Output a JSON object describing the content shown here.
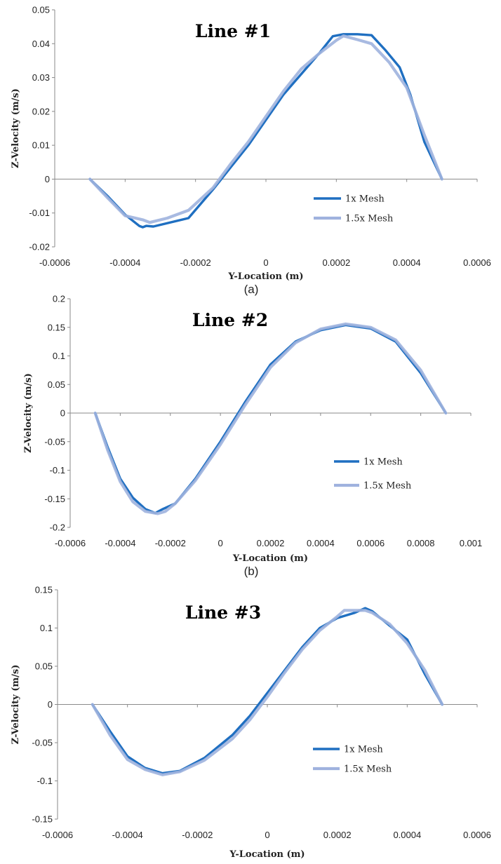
{
  "chart_data": [
    {
      "type": "line",
      "title": "Line #1",
      "xlabel": "Y-Location (m)",
      "ylabel": "Z-Velocity (m/s)",
      "caption": "(a)",
      "xlim": [
        -0.0006,
        0.0006
      ],
      "ylim": [
        -0.02,
        0.05
      ],
      "xticks": [
        -0.0006,
        -0.0004,
        -0.0002,
        0,
        0.0002,
        0.0004,
        0.0006
      ],
      "xtick_labels": [
        "-0.0006",
        "-0.0004",
        "-0.0002",
        "0",
        "0.0002",
        "0.0004",
        "0.0006"
      ],
      "yticks": [
        -0.02,
        -0.01,
        0,
        0.01,
        0.02,
        0.03,
        0.04,
        0.05
      ],
      "ytick_labels": [
        "-0.02",
        "-0.01",
        "0",
        "0.01",
        "0.02",
        "0.03",
        "0.04",
        "0.05"
      ],
      "grid": false,
      "legend_position": "bottom-right",
      "series": [
        {
          "name": "1x Mesh",
          "color": "#1f6fc1",
          "x": [
            -0.0005,
            -0.00045,
            -0.0004,
            -0.00036,
            -0.00035,
            -0.00034,
            -0.00032,
            -0.00022,
            -0.00015,
            -0.0001,
            -5e-05,
            0,
            5e-05,
            0.0001,
            0.00015,
            0.00019,
            0.00022,
            0.00026,
            0.0003,
            0.00034,
            0.00038,
            0.00041,
            0.00045,
            0.0005
          ],
          "y": [
            0,
            -0.005,
            -0.0105,
            -0.0138,
            -0.0142,
            -0.0138,
            -0.014,
            -0.0115,
            -0.003,
            0.0035,
            0.01,
            0.0175,
            0.025,
            0.031,
            0.037,
            0.0422,
            0.0428,
            0.0428,
            0.0425,
            0.038,
            0.033,
            0.025,
            0.011,
            0
          ]
        },
        {
          "name": "1.5x Mesh",
          "color": "#9fb2de",
          "x": [
            -0.0005,
            -0.00045,
            -0.0004,
            -0.00035,
            -0.00033,
            -0.00028,
            -0.00022,
            -0.00015,
            -0.0001,
            -5e-05,
            0,
            5e-05,
            0.0001,
            0.00015,
            0.0002,
            0.00022,
            0.00026,
            0.0003,
            0.00035,
            0.0004,
            0.00045,
            0.0005
          ],
          "y": [
            0,
            -0.0055,
            -0.0108,
            -0.012,
            -0.0128,
            -0.0115,
            -0.0092,
            -0.0025,
            0.0045,
            0.011,
            0.0185,
            0.026,
            0.0325,
            0.037,
            0.041,
            0.0423,
            0.0412,
            0.04,
            0.0345,
            0.027,
            0.013,
            0
          ]
        }
      ]
    },
    {
      "type": "line",
      "title": "Line #2",
      "xlabel": "Y-Location (m)",
      "ylabel": "Z-Velocity (m/s)",
      "caption": "(b)",
      "xlim": [
        -0.0006,
        0.001
      ],
      "ylim": [
        -0.2,
        0.2
      ],
      "xticks": [
        -0.0006,
        -0.0004,
        -0.0002,
        0,
        0.0002,
        0.0004,
        0.0006,
        0.0008,
        0.001
      ],
      "xtick_labels": [
        "-0.0006",
        "-0.0004",
        "-0.0002",
        "0",
        "0.0002",
        "0.0004",
        "0.0006",
        "0.0008",
        "0.001"
      ],
      "yticks": [
        -0.2,
        -0.15,
        -0.1,
        -0.05,
        0,
        0.05,
        0.1,
        0.15,
        0.2
      ],
      "ytick_labels": [
        "-0.2",
        "-0.15",
        "-0.1",
        "-0.05",
        "0",
        "0.05",
        "0.1",
        "0.15",
        "0.2"
      ],
      "grid": false,
      "legend_position": "bottom-right",
      "series": [
        {
          "name": "1x Mesh",
          "color": "#1f6fc1",
          "x": [
            -0.0005,
            -0.00045,
            -0.0004,
            -0.00035,
            -0.0003,
            -0.00026,
            -0.00023,
            -0.00018,
            -0.0001,
            0,
            0.0001,
            0.0002,
            0.0003,
            0.0004,
            0.0005,
            0.0006,
            0.0007,
            0.0008,
            0.0009
          ],
          "y": [
            0,
            -0.06,
            -0.115,
            -0.148,
            -0.168,
            -0.175,
            -0.168,
            -0.158,
            -0.115,
            -0.05,
            0.02,
            0.085,
            0.125,
            0.145,
            0.154,
            0.148,
            0.125,
            0.07,
            0
          ]
        },
        {
          "name": "1.5x Mesh",
          "color": "#9fb2de",
          "x": [
            -0.0005,
            -0.00045,
            -0.0004,
            -0.00035,
            -0.0003,
            -0.00025,
            -0.00022,
            -0.00018,
            -0.0001,
            0,
            0.0001,
            0.0002,
            0.0003,
            0.0004,
            0.0005,
            0.0006,
            0.0007,
            0.0008,
            0.0009
          ],
          "y": [
            0,
            -0.065,
            -0.12,
            -0.155,
            -0.172,
            -0.176,
            -0.172,
            -0.158,
            -0.118,
            -0.055,
            0.015,
            0.08,
            0.123,
            0.147,
            0.156,
            0.15,
            0.128,
            0.075,
            0
          ]
        }
      ]
    },
    {
      "type": "line",
      "title": "Line #3",
      "xlabel": "Y-Location (m)",
      "ylabel": "Z-Velocity (m/s)",
      "caption": "",
      "xlim": [
        -0.0006,
        0.0006
      ],
      "ylim": [
        -0.15,
        0.15
      ],
      "xticks": [
        -0.0006,
        -0.0004,
        -0.0002,
        0,
        0.0002,
        0.0004,
        0.0006
      ],
      "xtick_labels": [
        "-0.0006",
        "-0.0004",
        "-0.0002",
        "0",
        "0.0002",
        "0.0004",
        "0.0006"
      ],
      "yticks": [
        -0.15,
        -0.1,
        -0.05,
        0,
        0.05,
        0.1,
        0.15
      ],
      "ytick_labels": [
        "-0.15",
        "-0.1",
        "-0.05",
        "0",
        "0.05",
        "0.1",
        "0.15"
      ],
      "grid": false,
      "legend_position": "bottom-right",
      "series": [
        {
          "name": "1x Mesh",
          "color": "#1f6fc1",
          "x": [
            -0.0005,
            -0.00045,
            -0.0004,
            -0.00035,
            -0.0003,
            -0.00025,
            -0.00018,
            -0.0001,
            -5e-05,
            0,
            5e-05,
            0.0001,
            0.00015,
            0.0002,
            0.00025,
            0.00028,
            0.0003,
            0.00035,
            0.0004,
            0.00045,
            0.0005
          ],
          "y": [
            0,
            -0.035,
            -0.068,
            -0.083,
            -0.09,
            -0.087,
            -0.07,
            -0.04,
            -0.015,
            0.015,
            0.045,
            0.075,
            0.1,
            0.113,
            0.12,
            0.126,
            0.122,
            0.103,
            0.085,
            0.04,
            0
          ]
        },
        {
          "name": "1.5x Mesh",
          "color": "#9fb2de",
          "x": [
            -0.0005,
            -0.00045,
            -0.0004,
            -0.00035,
            -0.0003,
            -0.00025,
            -0.00018,
            -0.0001,
            -5e-05,
            0,
            5e-05,
            0.0001,
            0.00015,
            0.0002,
            0.00022,
            0.00028,
            0.0003,
            0.00035,
            0.0004,
            0.00045,
            0.0005
          ],
          "y": [
            0,
            -0.04,
            -0.072,
            -0.085,
            -0.092,
            -0.088,
            -0.073,
            -0.045,
            -0.02,
            0.01,
            0.042,
            0.072,
            0.097,
            0.115,
            0.123,
            0.123,
            0.12,
            0.105,
            0.08,
            0.045,
            0
          ]
        }
      ]
    }
  ]
}
